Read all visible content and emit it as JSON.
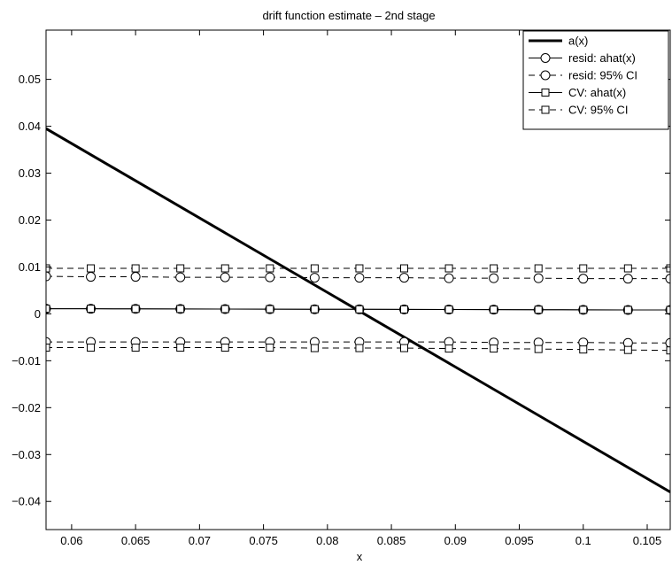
{
  "chart_data": {
    "type": "line",
    "title": "drift function estimate – 2nd stage",
    "xlabel": "x",
    "ylabel": "",
    "xlim": [
      0.058,
      0.1068
    ],
    "ylim": [
      -0.046,
      0.0605
    ],
    "xticks": [
      0.06,
      0.065,
      0.07,
      0.075,
      0.08,
      0.085,
      0.09,
      0.095,
      0.1,
      0.105
    ],
    "xtick_labels": [
      "0.06",
      "0.065",
      "0.07",
      "0.075",
      "0.08",
      "0.085",
      "0.09",
      "0.095",
      "0.1",
      "0.105"
    ],
    "yticks": [
      -0.04,
      -0.03,
      -0.02,
      -0.01,
      0,
      0.01,
      0.02,
      0.03,
      0.04,
      0.05
    ],
    "ytick_labels": [
      "−0.04",
      "−0.03",
      "−0.02",
      "−0.01",
      "0",
      "0.01",
      "0.02",
      "0.03",
      "0.04",
      "0.05"
    ],
    "grid": false,
    "legend_position": "top-right",
    "marker_x": [
      0.058,
      0.0615,
      0.065,
      0.0685,
      0.072,
      0.0755,
      0.079,
      0.0825,
      0.086,
      0.0895,
      0.093,
      0.0965,
      0.1,
      0.1035,
      0.1068
    ],
    "series": [
      {
        "name": "a(x)",
        "style": "solid-thick",
        "marker": "none",
        "x": [
          0.058,
          0.1068
        ],
        "y": [
          0.0395,
          -0.038
        ]
      },
      {
        "name": "resid: ahat(x)",
        "style": "solid",
        "marker": "circle",
        "y": [
          0.0011,
          0.00108,
          0.00106,
          0.00104,
          0.00102,
          0.001,
          0.00098,
          0.00096,
          0.00094,
          0.00092,
          0.0009,
          0.00088,
          0.00086,
          0.00084,
          0.00082
        ]
      },
      {
        "name": "resid: 95% CI",
        "style": "dashed",
        "marker": "circle",
        "y": [
          0.008,
          0.0079,
          0.0079,
          0.0078,
          0.0078,
          0.0078,
          0.0077,
          0.0077,
          0.0077,
          0.0076,
          0.0076,
          0.0076,
          0.0075,
          0.0075,
          0.0075
        ]
      },
      {
        "name": "resid: 95% CI (lower)",
        "style": "dashed",
        "marker": "circle",
        "y": [
          -0.006,
          -0.006,
          -0.006,
          -0.006,
          -0.006,
          -0.006,
          -0.006,
          -0.006,
          -0.006,
          -0.006,
          -0.0061,
          -0.0061,
          -0.0061,
          -0.0062,
          -0.0062
        ]
      },
      {
        "name": "CV: ahat(x)",
        "style": "solid",
        "marker": "square",
        "y": [
          0.0011,
          0.00108,
          0.00106,
          0.00104,
          0.00102,
          0.001,
          0.00098,
          0.00096,
          0.00094,
          0.00092,
          0.0009,
          0.00088,
          0.00086,
          0.00084,
          0.00082
        ]
      },
      {
        "name": "CV: 95% CI",
        "style": "dashed",
        "marker": "square",
        "y": [
          0.0097,
          0.0097,
          0.0097,
          0.0097,
          0.0097,
          0.0097,
          0.0097,
          0.0097,
          0.0097,
          0.0097,
          0.0097,
          0.0097,
          0.0097,
          0.0097,
          0.0097
        ]
      },
      {
        "name": "CV: 95% CI (lower)",
        "style": "dashed",
        "marker": "square",
        "y": [
          -0.0072,
          -0.0072,
          -0.0072,
          -0.0072,
          -0.0072,
          -0.0072,
          -0.0073,
          -0.0073,
          -0.0073,
          -0.0074,
          -0.0074,
          -0.0075,
          -0.0076,
          -0.0077,
          -0.0078
        ]
      }
    ],
    "legend": [
      {
        "label": "a(x)",
        "style": "solid-thick",
        "marker": "none"
      },
      {
        "label": "resid: ahat(x)",
        "style": "solid",
        "marker": "circle"
      },
      {
        "label": "resid: 95% CI",
        "style": "dashed",
        "marker": "circle"
      },
      {
        "label": "CV: ahat(x)",
        "style": "solid",
        "marker": "square"
      },
      {
        "label": "CV: 95% CI",
        "style": "dashed",
        "marker": "square"
      }
    ]
  }
}
